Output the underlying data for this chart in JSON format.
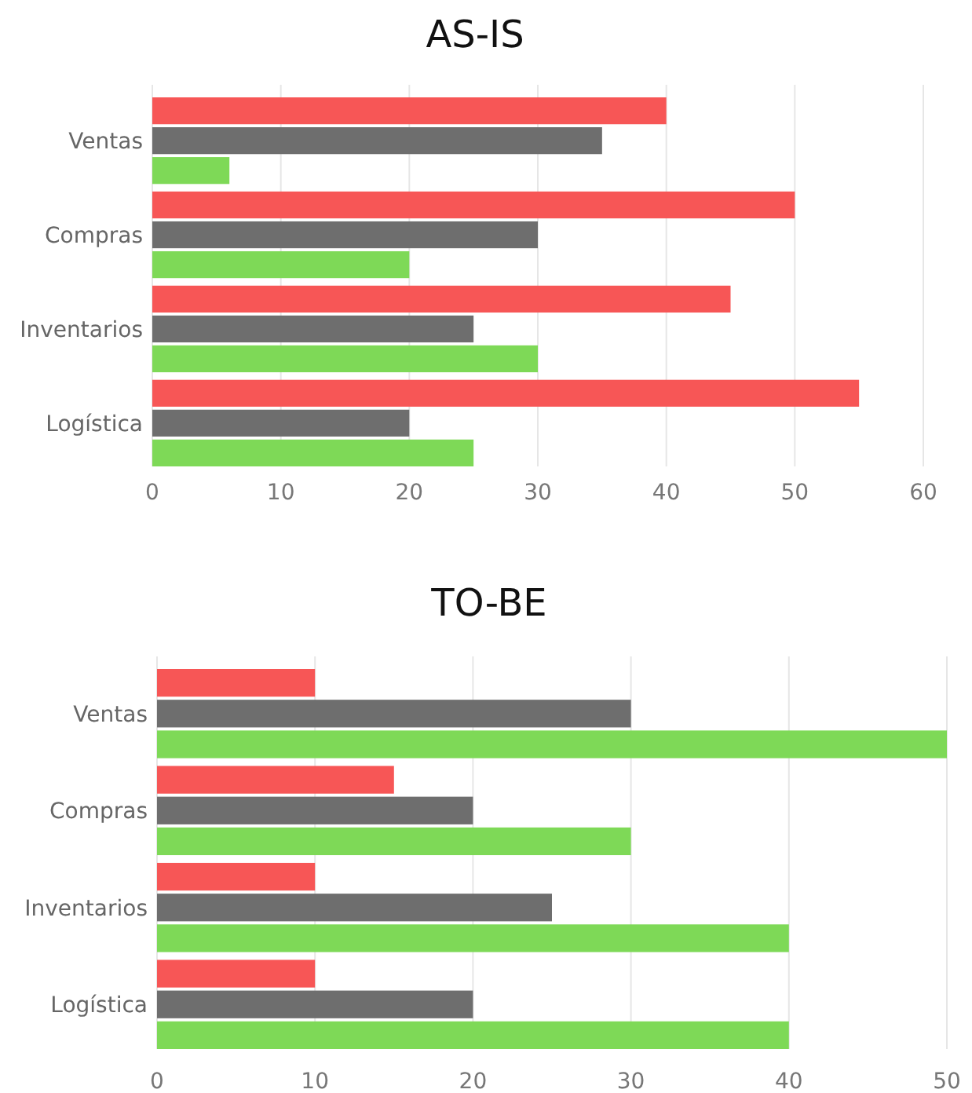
{
  "chart_data": [
    {
      "type": "bar",
      "title": "AS-IS",
      "orientation": "horizontal",
      "categories": [
        "Ventas",
        "Compras",
        "Inventarios",
        "Logística"
      ],
      "series": [
        {
          "color": "#f75656",
          "values": [
            40,
            50,
            45,
            55
          ]
        },
        {
          "color": "#6e6e6e",
          "values": [
            35,
            30,
            25,
            20
          ]
        },
        {
          "color": "#7ed957",
          "values": [
            6,
            20,
            30,
            25
          ]
        }
      ],
      "xlim": [
        0,
        60
      ],
      "xticks": [
        0,
        10,
        20,
        30,
        40,
        50,
        60
      ],
      "grid": "x"
    },
    {
      "type": "bar",
      "title": "TO-BE",
      "orientation": "horizontal",
      "categories": [
        "Ventas",
        "Compras",
        "Inventarios",
        "Logística"
      ],
      "series": [
        {
          "color": "#f75656",
          "values": [
            10,
            15,
            10,
            10
          ]
        },
        {
          "color": "#6e6e6e",
          "values": [
            30,
            20,
            25,
            20
          ]
        },
        {
          "color": "#7ed957",
          "values": [
            50,
            30,
            40,
            40
          ]
        }
      ],
      "xlim": [
        0,
        50
      ],
      "xticks": [
        0,
        10,
        20,
        30,
        40,
        50
      ],
      "grid": "x"
    }
  ]
}
